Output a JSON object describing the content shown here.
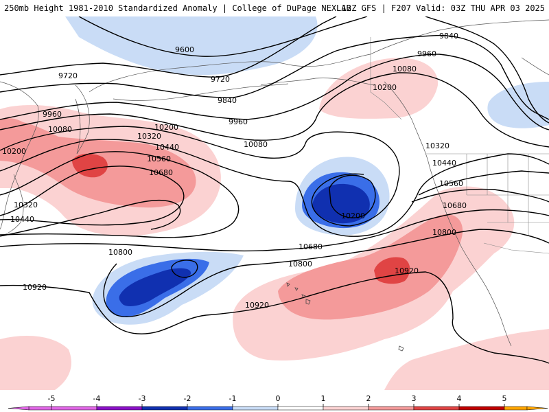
{
  "header": {
    "title_left": "250mb Height 1981-2010 Standardized Anomaly | College of DuPage NEXLAB",
    "title_right": "12Z GFS | F207 Valid: 03Z THU APR 03 2025"
  },
  "colors": {
    "-5": "#e066e6",
    "-4": "#8a10c8",
    "-3": "#1030b0",
    "-2": "#3a6ee8",
    "-1": "#c9dcf6",
    "1": "#fbd2d2",
    "2": "#f49a9a",
    "3": "#e04444",
    "4": "#c00000",
    "5": "#ffa500"
  },
  "contour_labels": [
    {
      "id": "9600",
      "text": "9600"
    },
    {
      "id": "9720-w",
      "text": "9720"
    },
    {
      "id": "9720-c",
      "text": "9720"
    },
    {
      "id": "9840-c",
      "text": "9840"
    },
    {
      "id": "9840-e",
      "text": "9840"
    },
    {
      "id": "9960-w",
      "text": "9960"
    },
    {
      "id": "9960-c",
      "text": "9960"
    },
    {
      "id": "9960-e",
      "text": "9960"
    },
    {
      "id": "10080-w",
      "text": "10080"
    },
    {
      "id": "10080-c",
      "text": "10080"
    },
    {
      "id": "10080-e",
      "text": "10080"
    },
    {
      "id": "10200-w",
      "text": "10200"
    },
    {
      "id": "10200-wl",
      "text": "10200"
    },
    {
      "id": "10200-e",
      "text": "10200"
    },
    {
      "id": "10200-low",
      "text": "10200"
    },
    {
      "id": "10320-w",
      "text": "10320"
    },
    {
      "id": "10320-wl",
      "text": "10320"
    },
    {
      "id": "10320-e",
      "text": "10320"
    },
    {
      "id": "10440-w",
      "text": "10440"
    },
    {
      "id": "10440-wl",
      "text": "10440"
    },
    {
      "id": "10440-e",
      "text": "10440"
    },
    {
      "id": "10560-w",
      "text": "10560"
    },
    {
      "id": "10560-e",
      "text": "10560"
    },
    {
      "id": "10680-w",
      "text": "10680"
    },
    {
      "id": "10680-c",
      "text": "10680"
    },
    {
      "id": "10680-e",
      "text": "10680"
    },
    {
      "id": "10800-w",
      "text": "10800"
    },
    {
      "id": "10800-c",
      "text": "10800"
    },
    {
      "id": "10800-e",
      "text": "10800"
    },
    {
      "id": "10920-w",
      "text": "10920"
    },
    {
      "id": "10920-c",
      "text": "10920"
    },
    {
      "id": "10920-e",
      "text": "10920"
    }
  ],
  "legend": {
    "ticks": [
      "-5",
      "-4",
      "-3",
      "-2",
      "-1",
      "0",
      "1",
      "2",
      "3",
      "4",
      "5"
    ]
  }
}
